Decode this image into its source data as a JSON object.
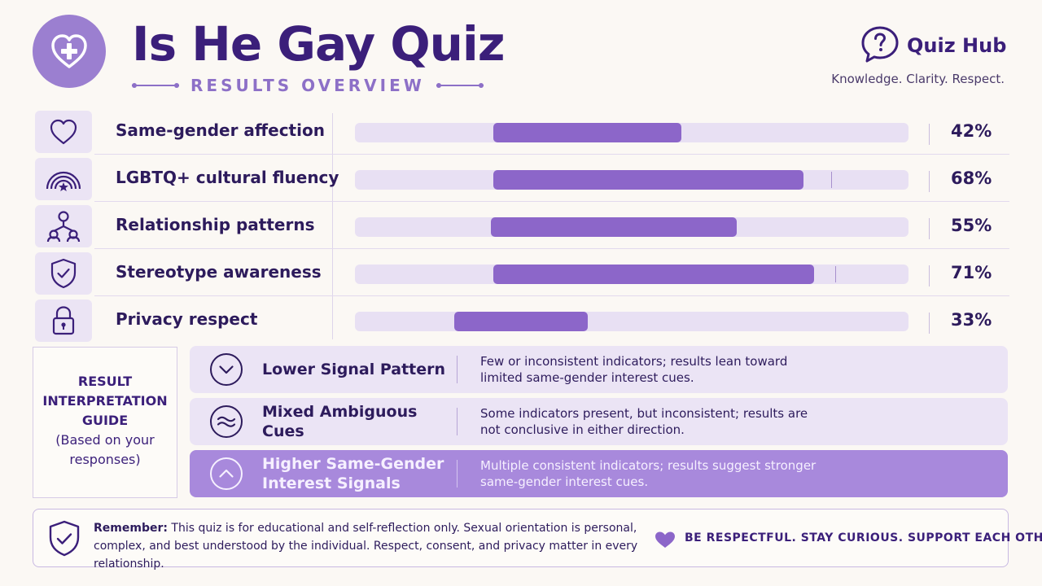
{
  "header": {
    "title": "Is He Gay Quiz",
    "subtitle": "RESULTS OVERVIEW",
    "logo_icon": "heart-plus-icon",
    "brand": {
      "name": "Quiz Hub",
      "tagline": "Knowledge. Clarity. Respect.",
      "icon": "question-bubble-icon"
    }
  },
  "metrics": [
    {
      "label": "Same-gender affection",
      "percent_text": "42%",
      "icon": "heart-outline-icon",
      "fill_start": 0.25,
      "fill_end": 0.59,
      "tick": null
    },
    {
      "label": "LGBTQ+ cultural fluency",
      "percent_text": "68%",
      "icon": "rainbow-icon",
      "fill_start": 0.25,
      "fill_end": 0.81,
      "tick": 0.861
    },
    {
      "label": "Relationship patterns",
      "percent_text": "55%",
      "icon": "people-network-icon",
      "fill_start": 0.245,
      "fill_end": 0.69,
      "tick": null
    },
    {
      "label": "Stereotype awareness",
      "percent_text": "71%",
      "icon": "shield-check-icon",
      "fill_start": 0.25,
      "fill_end": 0.83,
      "tick": 0.868
    },
    {
      "label": "Privacy respect",
      "percent_text": "33%",
      "icon": "lock-icon",
      "fill_start": 0.18,
      "fill_end": 0.42,
      "tick": null
    }
  ],
  "guide": {
    "title": "RESULT INTERPRETATION GUIDE",
    "subtitle": "(Based on your responses)"
  },
  "interpretations": [
    {
      "label": "Lower Signal Pattern",
      "description": "Few or inconsistent indicators; results lean toward limited same-gender interest cues.",
      "icon": "chevron-down-circle-icon",
      "highlighted": false
    },
    {
      "label": "Mixed Ambiguous Cues",
      "description": "Some indicators present, but inconsistent; results are not conclusive in either direction.",
      "icon": "wave-circle-icon",
      "highlighted": false
    },
    {
      "label": "Higher Same-Gender Interest Signals",
      "description": "Multiple consistent indicators; results suggest stronger same-gender interest cues.",
      "icon": "chevron-up-circle-icon",
      "highlighted": true
    }
  ],
  "footer": {
    "remember_label": "Remember:",
    "remember_text": " This quiz is for educational and self-reflection only. Sexual orientation is personal, complex, and best understood by the individual. Respect, consent, and privacy matter in every relationship.",
    "motto": "BE RESPECTFUL. STAY CURIOUS. SUPPORT EACH OTHER.",
    "icon": "shield-check-icon",
    "heart_icon": "heart-icon"
  },
  "colors": {
    "primary": "#3b1f7a",
    "accent": "#8c66c9",
    "track": "#e8e0f3",
    "highlight_band": "#a889dc",
    "background": "#fbf8f4"
  }
}
